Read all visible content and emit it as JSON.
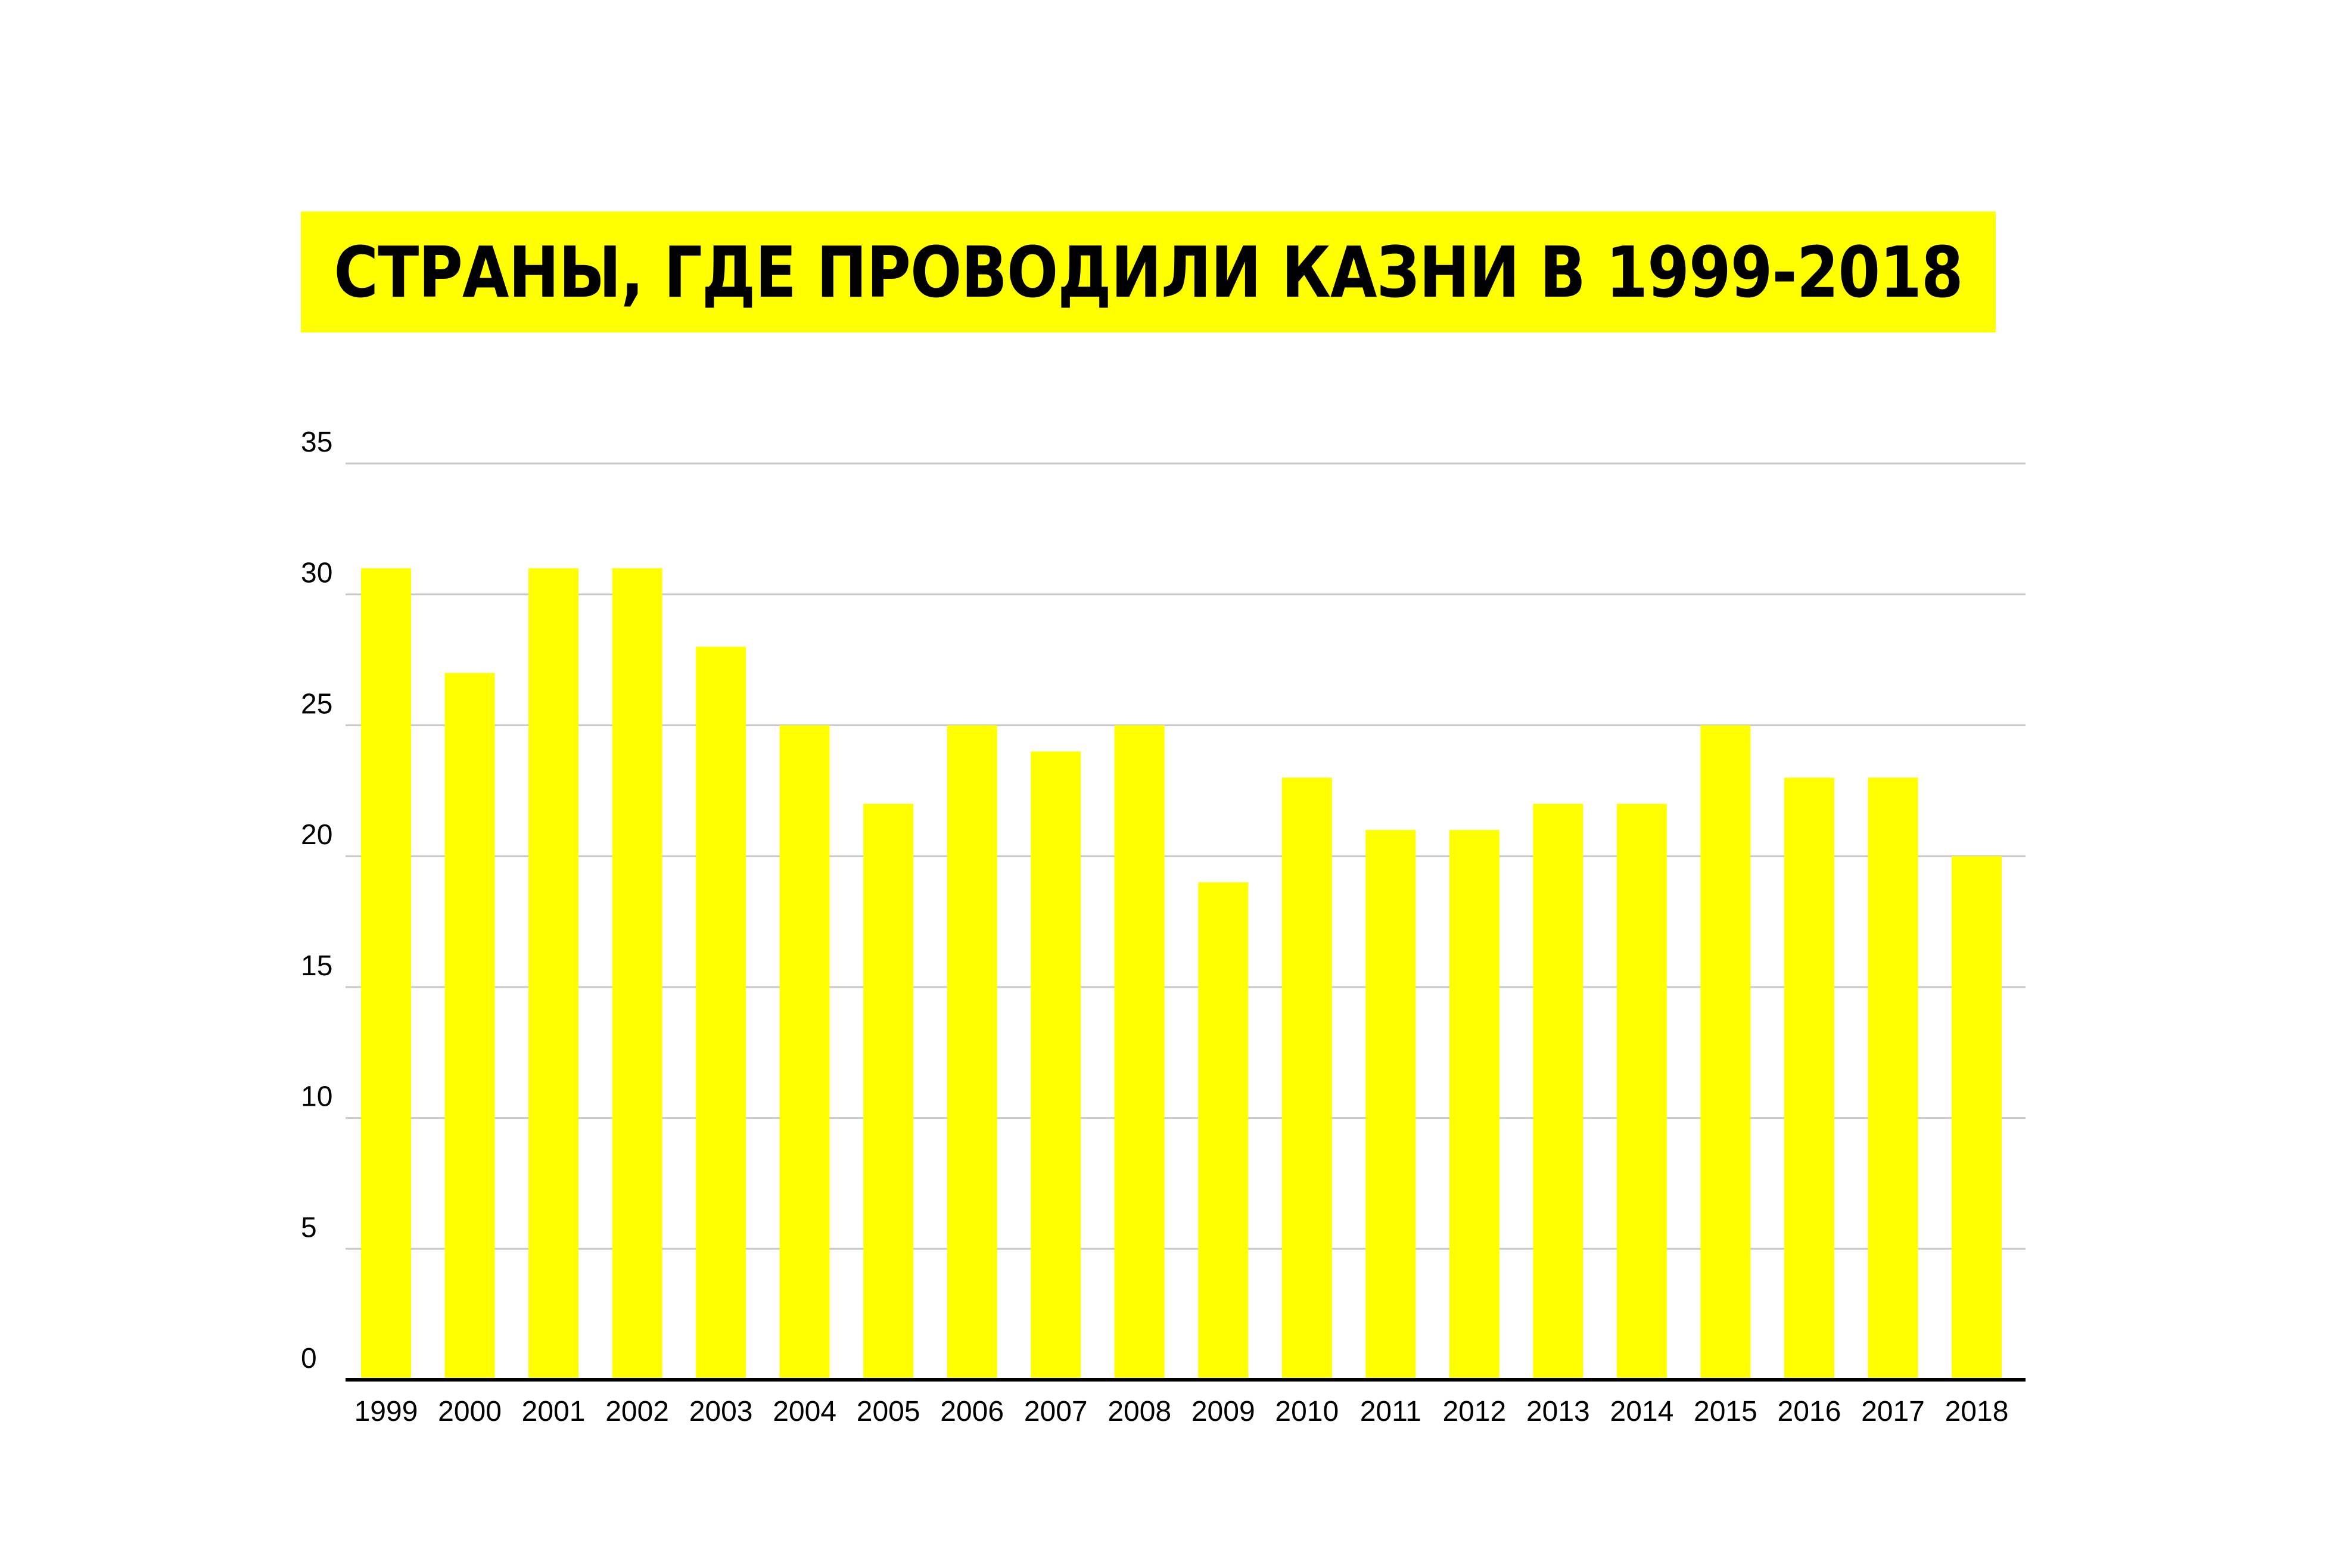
{
  "chart_data": {
    "type": "bar",
    "title": "СТРАНЫ, ГДЕ ПРОВОДИЛИ КАЗНИ В 1999-2018",
    "xlabel": "",
    "ylabel": "",
    "categories": [
      "1999",
      "2000",
      "2001",
      "2002",
      "2003",
      "2004",
      "2005",
      "2006",
      "2007",
      "2008",
      "2009",
      "2010",
      "2011",
      "2012",
      "2013",
      "2014",
      "2015",
      "2016",
      "2017",
      "2018"
    ],
    "values": [
      31,
      27,
      31,
      31,
      28,
      25,
      22,
      25,
      24,
      25,
      19,
      23,
      21,
      21,
      22,
      22,
      25,
      23,
      23,
      20
    ],
    "ylim": [
      0,
      35
    ],
    "yticks": [
      "0",
      "5",
      "10",
      "15",
      "20",
      "25",
      "30",
      "35"
    ],
    "grid": true,
    "legend": "none",
    "colors": {
      "bar": "#ffff00",
      "title_background": "#ffff00",
      "grid": "#c8c8c8",
      "axis": "#000000",
      "text": "#000000"
    }
  }
}
